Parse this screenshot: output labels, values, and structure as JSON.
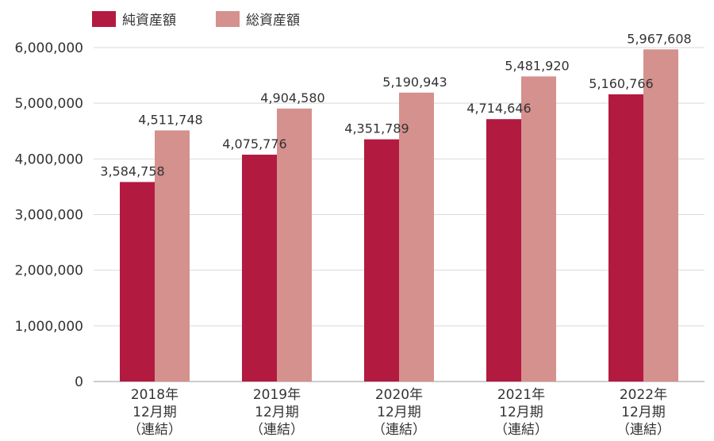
{
  "chart_data": {
    "type": "bar",
    "categories": [
      [
        "2018年",
        "12月期",
        "（連結）"
      ],
      [
        "2019年",
        "12月期",
        "（連結）"
      ],
      [
        "2020年",
        "12月期",
        "（連結）"
      ],
      [
        "2021年",
        "12月期",
        "（連結）"
      ],
      [
        "2022年",
        "12月期",
        "（連結）"
      ]
    ],
    "series": [
      {
        "name": "純資産額",
        "color": "#b31a40",
        "values": [
          3584758,
          4075776,
          4351789,
          4714646,
          5160766
        ]
      },
      {
        "name": "総資産額",
        "color": "#d4918d",
        "values": [
          4511748,
          4904580,
          5190943,
          5481920,
          5967608
        ]
      }
    ],
    "ylim": [
      0,
      6000000
    ],
    "yticks": [
      0,
      1000000,
      2000000,
      3000000,
      4000000,
      5000000,
      6000000
    ],
    "ytick_labels": [
      "0",
      "1,000,000",
      "2,000,000",
      "3,000,000",
      "4,000,000",
      "5,000,000",
      "6,000,000"
    ],
    "data_labels": [
      [
        "3,584,758",
        "4,075,776",
        "4,351,789",
        "4,714,646",
        "5,160,766"
      ],
      [
        "4,511,748",
        "4,904,580",
        "5,190,943",
        "5,481,920",
        "5,967,608"
      ]
    ],
    "grid": true,
    "legend": "top-left",
    "title": "",
    "xlabel": "",
    "ylabel": ""
  }
}
